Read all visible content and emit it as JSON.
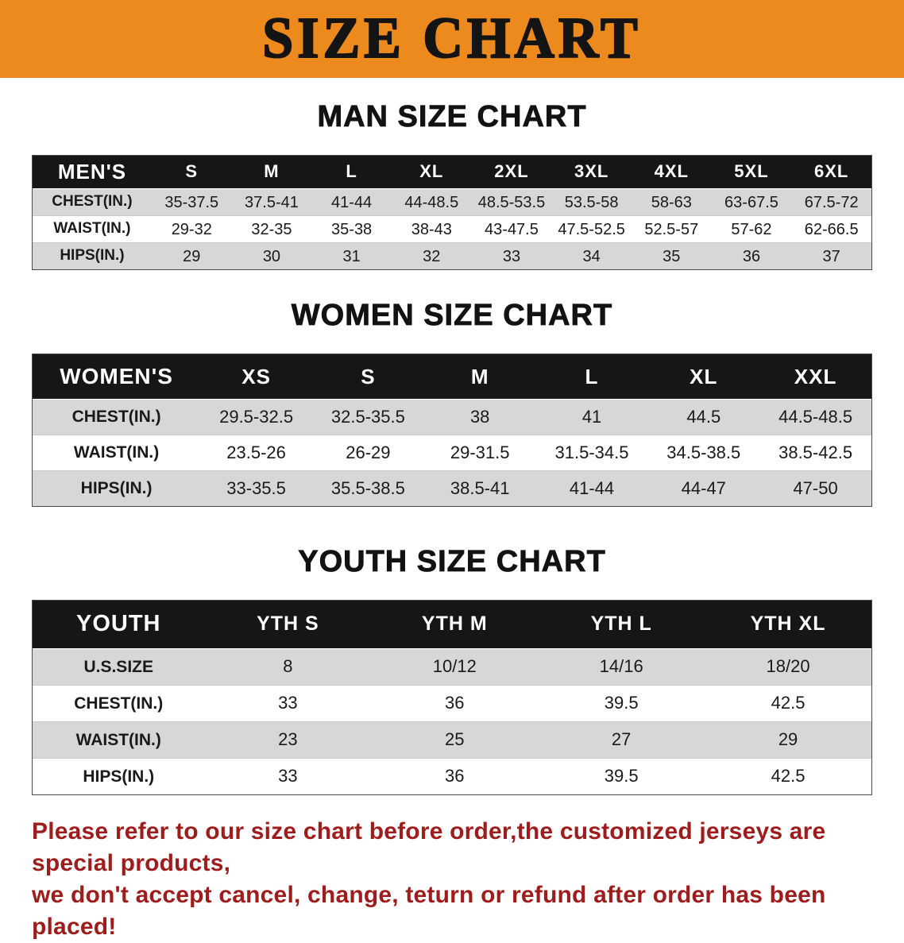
{
  "banner": {
    "title": "SIZE CHART"
  },
  "sections": [
    {
      "heading": "MAN SIZE CHART",
      "table": {
        "header": [
          "MEN'S",
          "S",
          "M",
          "L",
          "XL",
          "2XL",
          "3XL",
          "4XL",
          "5XL",
          "6XL"
        ],
        "rows": [
          {
            "label": "CHEST(IN.)",
            "values": [
              "35-37.5",
              "37.5-41",
              "41-44",
              "44-48.5",
              "48.5-53.5",
              "53.5-58",
              "58-63",
              "63-67.5",
              "67.5-72"
            ]
          },
          {
            "label": "WAIST(IN.)",
            "values": [
              "29-32",
              "32-35",
              "35-38",
              "38-43",
              "43-47.5",
              "47.5-52.5",
              "52.5-57",
              "57-62",
              "62-66.5"
            ]
          },
          {
            "label": "HIPS(IN.)",
            "values": [
              "29",
              "30",
              "31",
              "32",
              "33",
              "34",
              "35",
              "36",
              "37"
            ]
          }
        ]
      }
    },
    {
      "heading": "WOMEN SIZE CHART",
      "table": {
        "header": [
          "WOMEN'S",
          "XS",
          "S",
          "M",
          "L",
          "XL",
          "XXL"
        ],
        "rows": [
          {
            "label": "CHEST(IN.)",
            "values": [
              "29.5-32.5",
              "32.5-35.5",
              "38",
              "41",
              "44.5",
              "44.5-48.5"
            ]
          },
          {
            "label": "WAIST(IN.)",
            "values": [
              "23.5-26",
              "26-29",
              "29-31.5",
              "31.5-34.5",
              "34.5-38.5",
              "38.5-42.5"
            ]
          },
          {
            "label": "HIPS(IN.)",
            "values": [
              "33-35.5",
              "35.5-38.5",
              "38.5-41",
              "41-44",
              "44-47",
              "47-50"
            ]
          }
        ]
      }
    },
    {
      "heading": "YOUTH SIZE CHART",
      "table": {
        "header": [
          "YOUTH",
          "YTH S",
          "YTH M",
          "YTH L",
          "YTH XL"
        ],
        "rows": [
          {
            "label": "U.S.SIZE",
            "values": [
              "8",
              "10/12",
              "14/16",
              "18/20"
            ]
          },
          {
            "label": "CHEST(IN.)",
            "values": [
              "33",
              "36",
              "39.5",
              "42.5"
            ]
          },
          {
            "label": "WAIST(IN.)",
            "values": [
              "23",
              "25",
              "27",
              "29"
            ]
          },
          {
            "label": "HIPS(IN.)",
            "values": [
              "33",
              "36",
              "39.5",
              "42.5"
            ]
          }
        ]
      }
    }
  ],
  "footer": {
    "line1": "Please refer to our size chart before order,the customized jerseys are special products,",
    "line2": "we don't accept cancel, change, teturn or refund after order has been placed!"
  },
  "colors": {
    "banner_bg": "#ED8A1E",
    "header_bg": "#161616",
    "row_gray": "#d7d7d7",
    "footer_red": "#9e1c1c"
  }
}
